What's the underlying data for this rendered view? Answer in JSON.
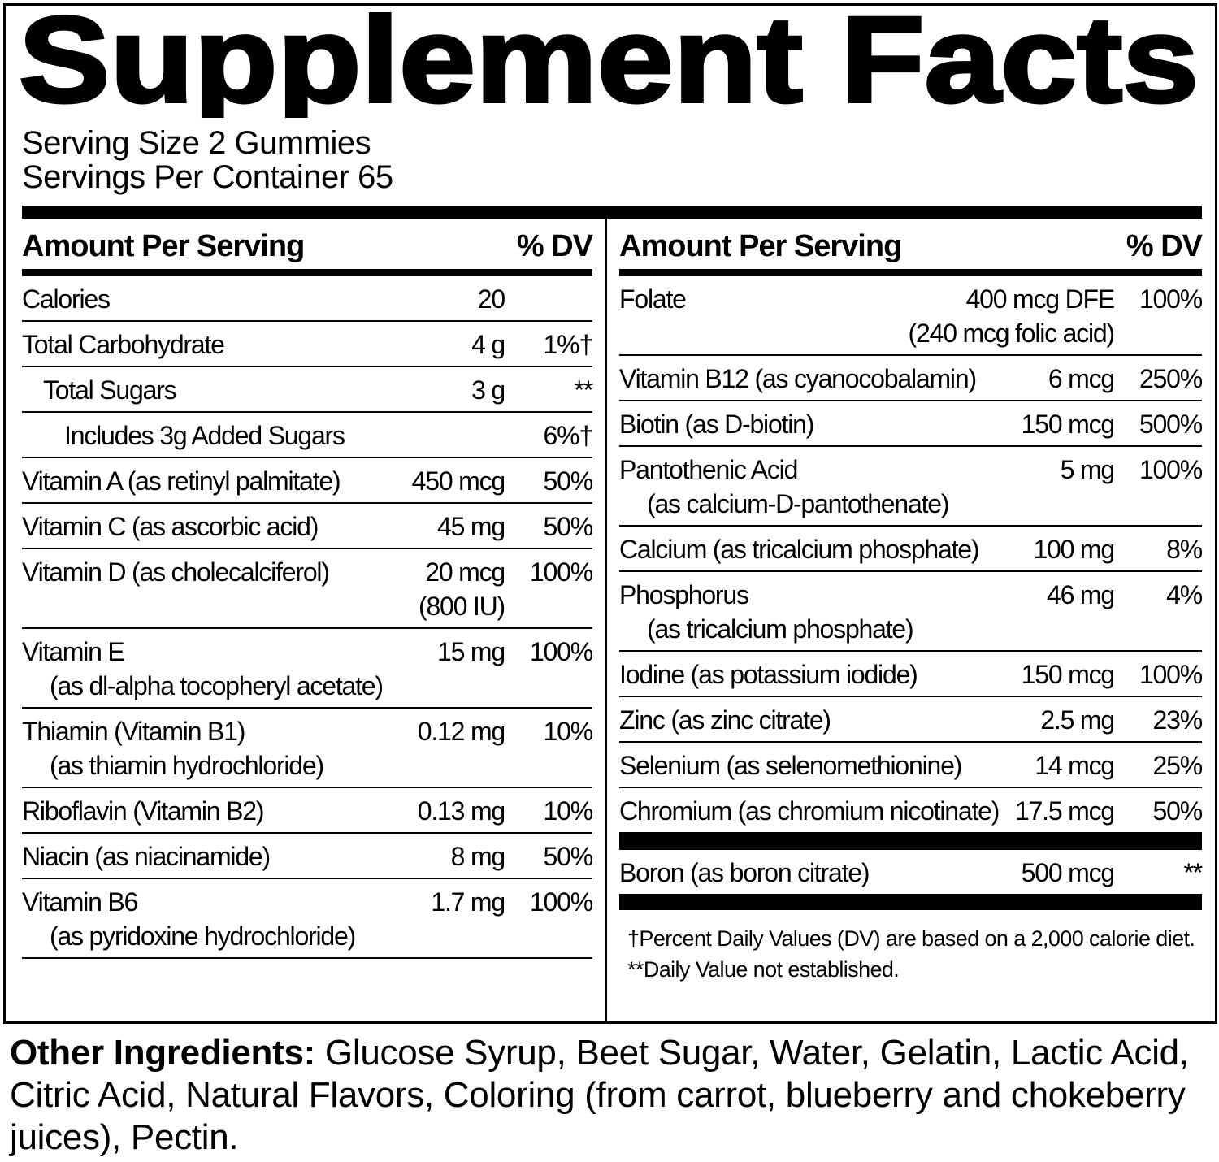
{
  "title": "Supplement Facts",
  "serving_size": "Serving Size 2 Gummies",
  "servings_per_container": "Servings Per Container 65",
  "left": {
    "header": {
      "amount": "Amount Per Serving",
      "dv": "% DV"
    },
    "rows": [
      {
        "name": "Calories",
        "amount": "20"
      },
      {
        "name": "Total Carbohydrate",
        "amount": "4 g",
        "dv": "1%†"
      },
      {
        "name": "Total Sugars",
        "amount": "3 g",
        "dv": "**"
      },
      {
        "name": "Includes 3g Added Sugars",
        "dv": "6%†"
      },
      {
        "name": "Vitamin A (as retinyl palmitate)",
        "amount": "450 mcg",
        "dv": "50%"
      },
      {
        "name": "Vitamin C (as ascorbic acid)",
        "amount": "45 mg",
        "dv": "50%"
      },
      {
        "name": "Vitamin D (as cholecalciferol)",
        "amount": "20 mcg",
        "amount_note": "(800 IU)",
        "dv": "100%"
      },
      {
        "name": "Vitamin E",
        "sub": "(as dl-alpha tocopheryl acetate)",
        "amount": "15 mg",
        "dv": "100%"
      },
      {
        "name": "Thiamin (Vitamin B1)",
        "sub": "(as thiamin hydrochloride)",
        "amount": "0.12 mg",
        "dv": "10%"
      },
      {
        "name": "Riboflavin (Vitamin B2)",
        "amount": "0.13 mg",
        "dv": "10%"
      },
      {
        "name": "Niacin (as niacinamide)",
        "amount": "8 mg",
        "dv": "50%"
      },
      {
        "name": "Vitamin B6",
        "sub": "(as pyridoxine hydrochloride)",
        "amount": "1.7 mg",
        "dv": "100%"
      }
    ]
  },
  "right": {
    "header": {
      "amount": "Amount Per Serving",
      "dv": "% DV"
    },
    "rows": [
      {
        "name": "Folate",
        "amount": "400 mcg DFE",
        "amount_note": "(240 mcg folic acid)",
        "dv": "100%"
      },
      {
        "name": "Vitamin B12 (as cyanocobalamin)",
        "amount": "6 mcg",
        "dv": "250%"
      },
      {
        "name": "Biotin (as D-biotin)",
        "amount": "150 mcg",
        "dv": "500%"
      },
      {
        "name": "Pantothenic Acid",
        "sub": "(as calcium-D-pantothenate)",
        "amount": "5 mg",
        "dv": "100%"
      },
      {
        "name": "Calcium (as tricalcium phosphate)",
        "amount": "100 mg",
        "dv": "8%"
      },
      {
        "name": "Phosphorus",
        "sub": "(as tricalcium phosphate)",
        "amount": "46 mg",
        "dv": "4%"
      },
      {
        "name": "Iodine (as potassium iodide)",
        "amount": "150 mcg",
        "dv": "100%"
      },
      {
        "name": "Zinc (as zinc citrate)",
        "amount": "2.5 mg",
        "dv": "23%"
      },
      {
        "name": "Selenium (as selenomethionine)",
        "amount": "14 mcg",
        "dv": "25%"
      },
      {
        "name": "Chromium (as chromium nicotinate)",
        "amount": "17.5 mcg",
        "dv": "50%"
      }
    ],
    "other_rows": [
      {
        "name": "Boron (as boron citrate)",
        "amount": "500 mcg",
        "dv": "**"
      }
    ],
    "footnotes": [
      "†Percent Daily Values (DV) are based on a 2,000 calorie diet.",
      "**Daily Value not established."
    ]
  },
  "other_ingredients": {
    "label": "Other Ingredients:",
    "text": "Glucose Syrup, Beet Sugar, Water, Gelatin, Lactic Acid, Citric Acid, Natural Flavors, Coloring (from carrot, blueberry and chokeberry juices), Pectin."
  }
}
